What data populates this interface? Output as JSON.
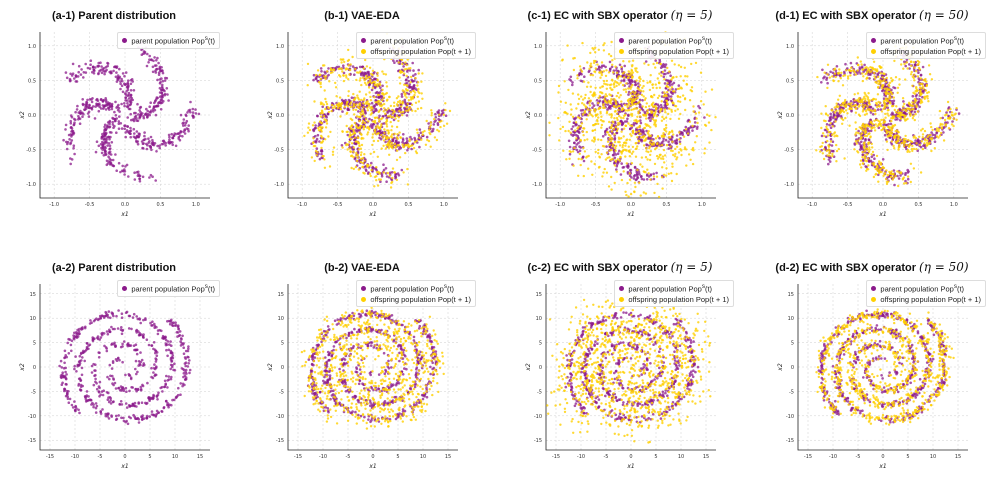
{
  "colors": {
    "parent": "#8B1A8B",
    "offspring": "#FFD000"
  },
  "legend": {
    "parent_label": "parent population Pop",
    "parent_sup": "s",
    "parent_arg": "(t)",
    "offspring_label": "offspring population Pop",
    "offspring_arg": "(t + 1)"
  },
  "chart_data": [
    {
      "type": "scatter",
      "title": "(a-1) Parent distribution",
      "title_math": "",
      "xlabel": "x1",
      "ylabel": "x2",
      "xlim": [
        -1.2,
        1.2
      ],
      "ylim": [
        -1.2,
        1.2
      ],
      "xticks": [
        "-1.0",
        "-0.5",
        "0.0",
        "0.5",
        "1.0"
      ],
      "yticks": [
        "-1.0",
        "-0.5",
        "0.0",
        "0.5",
        "1.0"
      ],
      "grid": true,
      "legend": "top-right",
      "shape": "pinwheel",
      "parent_count": 700,
      "offspring_count": 0,
      "offspring_spread": 0,
      "series": [
        {
          "name": "parent population Pop^s(t)",
          "color": "#8B1A8B"
        }
      ]
    },
    {
      "type": "scatter",
      "title": "(b-1) VAE-EDA",
      "title_math": "",
      "xlabel": "x1",
      "ylabel": "x2",
      "xlim": [
        -1.2,
        1.2
      ],
      "ylim": [
        -1.2,
        1.2
      ],
      "xticks": [
        "-1.0",
        "-0.5",
        "0.0",
        "0.5",
        "1.0"
      ],
      "yticks": [
        "-1.0",
        "-0.5",
        "0.0",
        "0.5",
        "1.0"
      ],
      "grid": true,
      "legend": "top-right",
      "shape": "pinwheel",
      "parent_count": 700,
      "offspring_count": 700,
      "offspring_spread": 0.05,
      "series": [
        {
          "name": "parent population Pop^s(t)",
          "color": "#8B1A8B"
        },
        {
          "name": "offspring population Pop(t+1)",
          "color": "#FFD000"
        }
      ]
    },
    {
      "type": "scatter",
      "title": "(c-1) EC with SBX operator",
      "title_math": "(η = 5)",
      "xlabel": "x1",
      "ylabel": "x2",
      "xlim": [
        -1.2,
        1.2
      ],
      "ylim": [
        -1.2,
        1.2
      ],
      "xticks": [
        "-1.0",
        "-0.5",
        "0.0",
        "0.5",
        "1.0"
      ],
      "yticks": [
        "-1.0",
        "-0.5",
        "0.0",
        "0.5",
        "1.0"
      ],
      "grid": true,
      "legend": "top-right",
      "shape": "pinwheel",
      "parent_count": 700,
      "offspring_count": 900,
      "offspring_spread": 0.18,
      "series": [
        {
          "name": "parent population Pop^s(t)",
          "color": "#8B1A8B"
        },
        {
          "name": "offspring population Pop(t+1)",
          "color": "#FFD000"
        }
      ]
    },
    {
      "type": "scatter",
      "title": "(d-1) EC with SBX operator",
      "title_math": "(η = 50)",
      "xlabel": "x1",
      "ylabel": "x2",
      "xlim": [
        -1.2,
        1.2
      ],
      "ylim": [
        -1.2,
        1.2
      ],
      "xticks": [
        "-1.0",
        "-0.5",
        "0.0",
        "0.5",
        "1.0"
      ],
      "yticks": [
        "-1.0",
        "-0.5",
        "0.0",
        "0.5",
        "1.0"
      ],
      "grid": true,
      "legend": "top-right",
      "shape": "pinwheel",
      "parent_count": 700,
      "offspring_count": 800,
      "offspring_spread": 0.03,
      "series": [
        {
          "name": "parent population Pop^s(t)",
          "color": "#8B1A8B"
        },
        {
          "name": "offspring population Pop(t+1)",
          "color": "#FFD000"
        }
      ]
    },
    {
      "type": "scatter",
      "title": "(a-2) Parent distribution",
      "title_math": "",
      "xlabel": "x1",
      "ylabel": "x2",
      "xlim": [
        -17,
        17
      ],
      "ylim": [
        -17,
        17
      ],
      "xticks": [
        "-15",
        "-10",
        "-5",
        "0",
        "5",
        "10",
        "15"
      ],
      "yticks": [
        "-15",
        "-10",
        "-5",
        "0",
        "5",
        "10",
        "15"
      ],
      "grid": true,
      "legend": "top-right",
      "shape": "spiral",
      "parent_count": 650,
      "offspring_count": 0,
      "offspring_spread": 0,
      "series": [
        {
          "name": "parent population Pop^s(t)",
          "color": "#8B1A8B"
        }
      ]
    },
    {
      "type": "scatter",
      "title": "(b-2) VAE-EDA",
      "title_math": "",
      "xlabel": "x1",
      "ylabel": "x2",
      "xlim": [
        -17,
        17
      ],
      "ylim": [
        -17,
        17
      ],
      "xticks": [
        "-15",
        "-10",
        "-5",
        "0",
        "5",
        "10",
        "15"
      ],
      "yticks": [
        "-15",
        "-10",
        "-5",
        "0",
        "5",
        "10",
        "15"
      ],
      "grid": true,
      "legend": "top-right",
      "shape": "spiral",
      "parent_count": 650,
      "offspring_count": 800,
      "offspring_spread": 0.7,
      "series": [
        {
          "name": "parent population Pop^s(t)",
          "color": "#8B1A8B"
        },
        {
          "name": "offspring population Pop(t+1)",
          "color": "#FFD000"
        }
      ]
    },
    {
      "type": "scatter",
      "title": "(c-2) EC with SBX operator",
      "title_math": "(η = 5)",
      "xlabel": "x1",
      "ylabel": "x2",
      "xlim": [
        -17,
        17
      ],
      "ylim": [
        -17,
        17
      ],
      "xticks": [
        "-15",
        "-10",
        "-5",
        "0",
        "5",
        "10",
        "15"
      ],
      "yticks": [
        "-15",
        "-10",
        "-5",
        "0",
        "5",
        "10",
        "15"
      ],
      "grid": true,
      "legend": "top-right",
      "shape": "spiral",
      "parent_count": 650,
      "offspring_count": 1000,
      "offspring_spread": 2.2,
      "series": [
        {
          "name": "parent population Pop^s(t)",
          "color": "#8B1A8B"
        },
        {
          "name": "offspring population Pop(t+1)",
          "color": "#FFD000"
        }
      ]
    },
    {
      "type": "scatter",
      "title": "(d-2) EC with SBX operator",
      "title_math": "(η = 50)",
      "xlabel": "x1",
      "ylabel": "x2",
      "xlim": [
        -17,
        17
      ],
      "ylim": [
        -17,
        17
      ],
      "xticks": [
        "-15",
        "-10",
        "-5",
        "0",
        "5",
        "10",
        "15"
      ],
      "yticks": [
        "-15",
        "-10",
        "-5",
        "0",
        "5",
        "10",
        "15"
      ],
      "grid": true,
      "legend": "top-right",
      "shape": "spiral",
      "parent_count": 650,
      "offspring_count": 900,
      "offspring_spread": 0.3,
      "series": [
        {
          "name": "parent population Pop^s(t)",
          "color": "#8B1A8B"
        },
        {
          "name": "offspring population Pop(t+1)",
          "color": "#FFD000"
        }
      ]
    }
  ]
}
